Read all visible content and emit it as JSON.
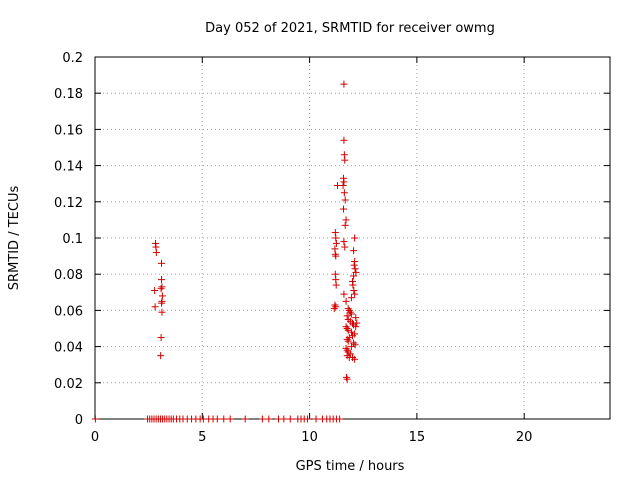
{
  "chart_data": {
    "type": "scatter",
    "title": "Day 052 of 2021, SRMTID for receiver owmg",
    "xlabel": "GPS time / hours",
    "ylabel": "SRMTID / TECUs",
    "xlim": [
      0,
      24
    ],
    "ylim": [
      0,
      0.2
    ],
    "xticks": [
      0,
      5,
      10,
      15,
      20
    ],
    "xtick_labels": [
      "0",
      "5",
      "10",
      "15",
      "20"
    ],
    "yticks": [
      0,
      0.02,
      0.04,
      0.06,
      0.08,
      0.1,
      0.12,
      0.14,
      0.16,
      0.18,
      0.2
    ],
    "ytick_labels": [
      "0",
      "0.02",
      "0.04",
      "0.06",
      "0.08",
      "0.1",
      "0.12",
      "0.14",
      "0.16",
      "0.18",
      "0.2"
    ],
    "grid": true,
    "marker": "+",
    "color": "#d40000",
    "series": [
      {
        "name": "SRMTID",
        "points": [
          [
            0.02,
            0.0
          ],
          [
            2.45,
            0.0
          ],
          [
            2.55,
            0.0
          ],
          [
            2.65,
            0.0
          ],
          [
            2.75,
            0.0
          ],
          [
            2.85,
            0.0
          ],
          [
            2.95,
            0.0
          ],
          [
            3.05,
            0.0
          ],
          [
            3.15,
            0.0
          ],
          [
            3.25,
            0.0
          ],
          [
            3.35,
            0.0
          ],
          [
            3.45,
            0.0
          ],
          [
            3.55,
            0.0
          ],
          [
            3.65,
            0.0
          ],
          [
            3.8,
            0.0
          ],
          [
            3.95,
            0.0
          ],
          [
            4.1,
            0.0
          ],
          [
            4.3,
            0.0
          ],
          [
            4.5,
            0.0
          ],
          [
            4.7,
            0.0
          ],
          [
            4.9,
            0.0
          ],
          [
            5.05,
            0.0
          ],
          [
            5.3,
            0.0
          ],
          [
            5.5,
            0.0
          ],
          [
            5.7,
            0.0
          ],
          [
            6.0,
            0.0
          ],
          [
            6.3,
            0.0
          ],
          [
            7.0,
            0.0
          ],
          [
            7.8,
            0.0
          ],
          [
            8.1,
            0.0
          ],
          [
            8.55,
            0.0
          ],
          [
            8.8,
            0.0
          ],
          [
            9.1,
            0.0
          ],
          [
            9.45,
            0.0
          ],
          [
            9.6,
            0.0
          ],
          [
            9.75,
            0.0
          ],
          [
            9.9,
            0.0
          ],
          [
            10.3,
            0.0
          ],
          [
            10.6,
            0.0
          ],
          [
            10.8,
            0.0
          ],
          [
            10.95,
            0.0
          ],
          [
            11.1,
            0.0
          ],
          [
            11.25,
            0.0
          ],
          [
            11.4,
            0.0
          ],
          [
            2.82,
            0.097
          ],
          [
            2.84,
            0.095
          ],
          [
            2.86,
            0.092
          ],
          [
            2.78,
            0.071
          ],
          [
            2.8,
            0.062
          ],
          [
            3.1,
            0.086
          ],
          [
            3.1,
            0.077
          ],
          [
            3.12,
            0.073
          ],
          [
            3.08,
            0.072
          ],
          [
            3.14,
            0.068
          ],
          [
            3.12,
            0.065
          ],
          [
            3.1,
            0.064
          ],
          [
            3.12,
            0.059
          ],
          [
            3.08,
            0.045
          ],
          [
            3.06,
            0.035
          ],
          [
            11.6,
            0.185
          ],
          [
            11.6,
            0.154
          ],
          [
            11.62,
            0.146
          ],
          [
            11.64,
            0.143
          ],
          [
            11.58,
            0.133
          ],
          [
            11.6,
            0.131
          ],
          [
            11.56,
            0.129
          ],
          [
            11.62,
            0.125
          ],
          [
            11.66,
            0.121
          ],
          [
            11.58,
            0.116
          ],
          [
            11.7,
            0.11
          ],
          [
            11.66,
            0.107
          ],
          [
            11.3,
            0.129
          ],
          [
            11.2,
            0.103
          ],
          [
            11.22,
            0.1
          ],
          [
            11.25,
            0.097
          ],
          [
            11.18,
            0.094
          ],
          [
            11.2,
            0.091
          ],
          [
            11.22,
            0.09
          ],
          [
            11.6,
            0.098
          ],
          [
            11.64,
            0.095
          ],
          [
            11.2,
            0.08
          ],
          [
            11.22,
            0.077
          ],
          [
            11.24,
            0.074
          ],
          [
            11.18,
            0.063
          ],
          [
            11.22,
            0.062
          ],
          [
            11.15,
            0.061
          ],
          [
            12.1,
            0.1
          ],
          [
            12.05,
            0.093
          ],
          [
            12.1,
            0.087
          ],
          [
            12.08,
            0.085
          ],
          [
            12.12,
            0.083
          ],
          [
            12.16,
            0.081
          ],
          [
            12.05,
            0.079
          ],
          [
            12.0,
            0.076
          ],
          [
            12.02,
            0.074
          ],
          [
            12.06,
            0.071
          ],
          [
            12.1,
            0.069
          ],
          [
            11.95,
            0.067
          ],
          [
            11.7,
            0.065
          ],
          [
            11.6,
            0.069
          ],
          [
            11.8,
            0.061
          ],
          [
            11.85,
            0.06
          ],
          [
            11.9,
            0.059
          ],
          [
            11.95,
            0.058
          ],
          [
            11.75,
            0.057
          ],
          [
            11.8,
            0.055
          ],
          [
            11.9,
            0.054
          ],
          [
            12.0,
            0.053
          ],
          [
            12.05,
            0.052
          ],
          [
            12.15,
            0.051
          ],
          [
            11.7,
            0.051
          ],
          [
            11.75,
            0.05
          ],
          [
            11.8,
            0.049
          ],
          [
            11.95,
            0.048
          ],
          [
            12.0,
            0.046
          ],
          [
            12.1,
            0.047
          ],
          [
            11.85,
            0.045
          ],
          [
            11.75,
            0.044
          ],
          [
            11.8,
            0.043
          ],
          [
            12.05,
            0.042
          ],
          [
            12.12,
            0.041
          ],
          [
            11.95,
            0.04
          ],
          [
            11.7,
            0.039
          ],
          [
            11.75,
            0.038
          ],
          [
            11.8,
            0.037
          ],
          [
            11.9,
            0.036
          ],
          [
            11.75,
            0.035
          ],
          [
            11.85,
            0.034
          ],
          [
            12.0,
            0.034
          ],
          [
            12.1,
            0.033
          ],
          [
            12.15,
            0.056
          ],
          [
            12.2,
            0.053
          ],
          [
            11.72,
            0.023
          ],
          [
            11.75,
            0.022
          ]
        ]
      }
    ]
  }
}
